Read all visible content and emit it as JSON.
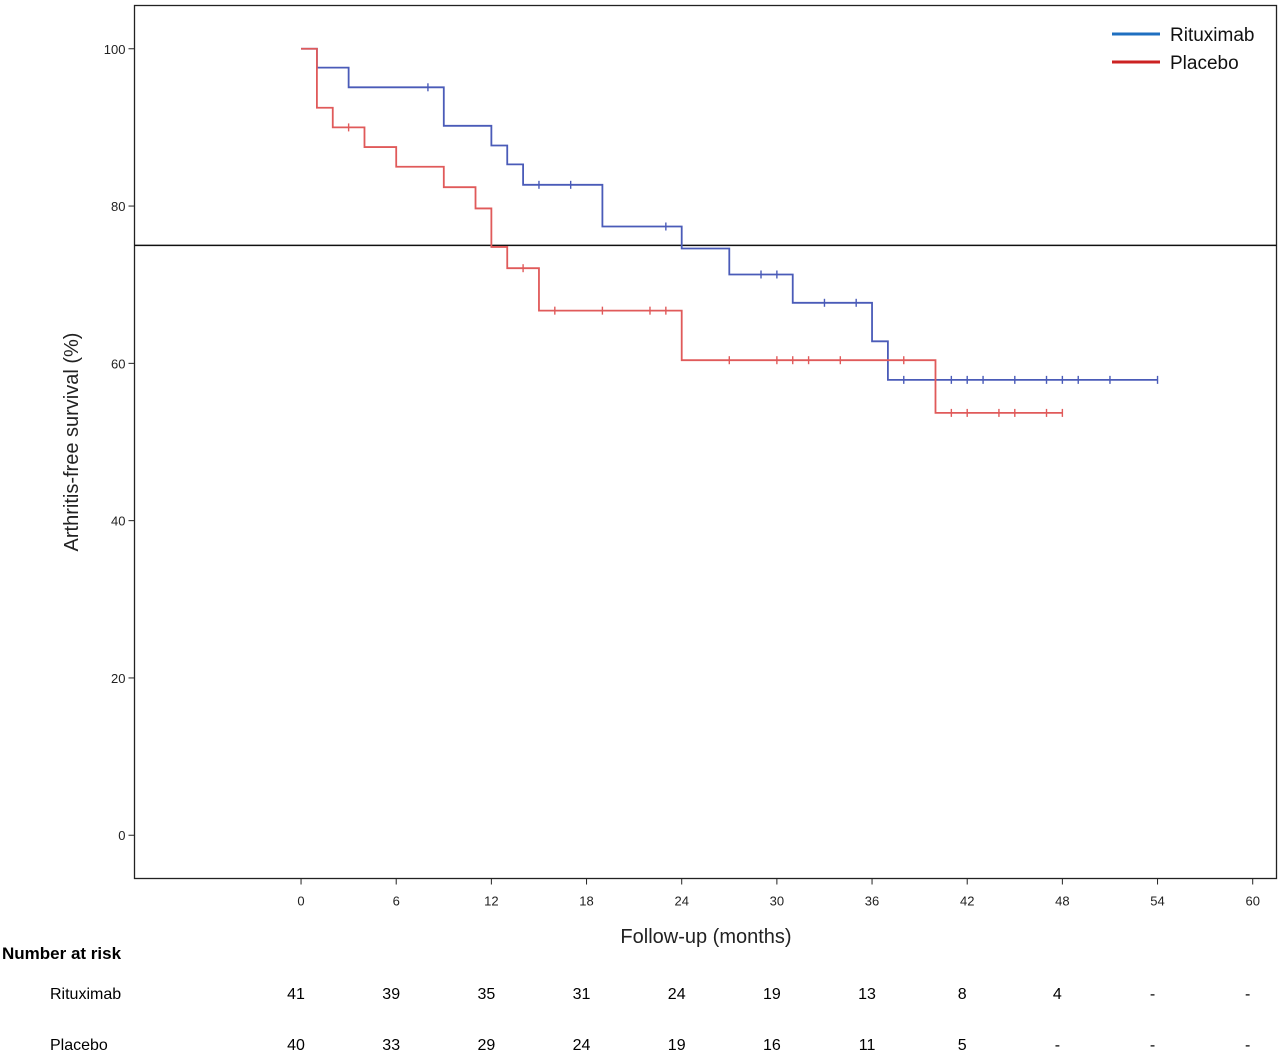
{
  "chart_data": {
    "type": "line",
    "subtype": "kaplan-meier",
    "title": "",
    "xlabel": "Follow-up (months)",
    "ylabel": "Arthritis-free survival (%)",
    "xlim": [
      -10.5,
      61.5
    ],
    "ylim": [
      -5.5,
      105.5
    ],
    "xticks": [
      0,
      6,
      12,
      18,
      24,
      30,
      36,
      42,
      48,
      54,
      60
    ],
    "yticks": [
      0,
      20,
      40,
      60,
      80,
      100
    ],
    "reference_line_y": 75,
    "legend_position": "top-right",
    "grid": false,
    "series": [
      {
        "name": "Rituximab",
        "color": "#1f6fc0",
        "line_color": "#4a5bb8",
        "steps": [
          [
            0,
            100
          ],
          [
            1,
            97.6
          ],
          [
            3,
            95.1
          ],
          [
            9,
            90.2
          ],
          [
            12,
            87.7
          ],
          [
            13,
            85.3
          ],
          [
            14,
            82.7
          ],
          [
            19,
            77.4
          ],
          [
            24,
            74.6
          ],
          [
            27,
            71.3
          ],
          [
            31,
            67.7
          ],
          [
            36,
            62.8
          ],
          [
            37,
            57.9
          ]
        ],
        "end_x": 54,
        "censor_x": [
          8,
          15,
          17,
          23,
          29,
          30,
          33,
          35,
          38,
          41,
          42,
          43,
          45,
          47,
          48,
          49,
          51,
          54
        ]
      },
      {
        "name": "Placebo",
        "color": "#cc2222",
        "line_color": "#e05a5a",
        "steps": [
          [
            0,
            100
          ],
          [
            1,
            92.5
          ],
          [
            2,
            90
          ],
          [
            4,
            87.5
          ],
          [
            6,
            85
          ],
          [
            9,
            82.4
          ],
          [
            11,
            79.7
          ],
          [
            12,
            74.8
          ],
          [
            13,
            72.1
          ],
          [
            15,
            66.7
          ],
          [
            24,
            60.4
          ],
          [
            40,
            53.7
          ]
        ],
        "end_x": 48,
        "censor_x": [
          3,
          14,
          16,
          19,
          22,
          23,
          27,
          30,
          31,
          32,
          34,
          38,
          41,
          42,
          44,
          45,
          47,
          48
        ]
      }
    ]
  },
  "risk_table": {
    "title": "Number at risk",
    "rows": [
      {
        "label": "Rituximab",
        "values": [
          "41",
          "39",
          "35",
          "31",
          "24",
          "19",
          "13",
          "8",
          "4",
          "-",
          "-"
        ]
      },
      {
        "label": "Placebo",
        "values": [
          "40",
          "33",
          "29",
          "24",
          "19",
          "16",
          "11",
          "5",
          "-",
          "-",
          "-"
        ]
      }
    ]
  }
}
